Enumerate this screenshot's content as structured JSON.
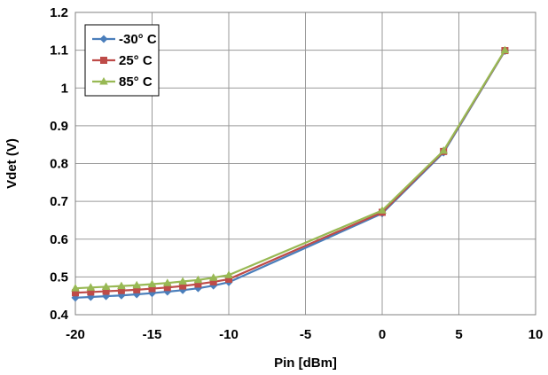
{
  "chart_data": {
    "type": "line",
    "title": "",
    "xlabel": "Pin [dBm]",
    "ylabel": "Vdet (V)",
    "xlim": [
      -20,
      10
    ],
    "ylim": [
      0.4,
      1.2
    ],
    "xticks": [
      "-20",
      "-15",
      "-10",
      "-5",
      "0",
      "5",
      "10"
    ],
    "yticks": [
      "0.4",
      "0.5",
      "0.6",
      "0.7",
      "0.8",
      "0.9",
      "1",
      "1.1",
      "1.2"
    ],
    "grid": true,
    "legend_position": "top-left",
    "series": [
      {
        "name": "-30° C",
        "color": "#4a7ebb",
        "marker": "diamond",
        "x": [
          -20,
          -19,
          -18,
          -17,
          -16,
          -15,
          -14,
          -13,
          -12,
          -11,
          -10,
          0,
          4,
          8
        ],
        "y": [
          0.445,
          0.447,
          0.449,
          0.451,
          0.454,
          0.457,
          0.461,
          0.465,
          0.47,
          0.477,
          0.486,
          0.668,
          0.829,
          1.098
        ]
      },
      {
        "name": "25° C",
        "color": "#be4b48",
        "marker": "square",
        "x": [
          -20,
          -19,
          -18,
          -17,
          -16,
          -15,
          -14,
          -13,
          -12,
          -11,
          -10,
          0,
          4,
          8
        ],
        "y": [
          0.458,
          0.46,
          0.462,
          0.464,
          0.466,
          0.469,
          0.472,
          0.476,
          0.481,
          0.487,
          0.494,
          0.671,
          0.832,
          1.099
        ]
      },
      {
        "name": "85° C",
        "color": "#98b954",
        "marker": "triangle",
        "x": [
          -20,
          -19,
          -18,
          -17,
          -16,
          -15,
          -14,
          -13,
          -12,
          -11,
          -10,
          0,
          4,
          8
        ],
        "y": [
          0.47,
          0.472,
          0.474,
          0.476,
          0.478,
          0.481,
          0.484,
          0.488,
          0.492,
          0.498,
          0.505,
          0.676,
          0.834,
          1.1
        ]
      }
    ]
  }
}
